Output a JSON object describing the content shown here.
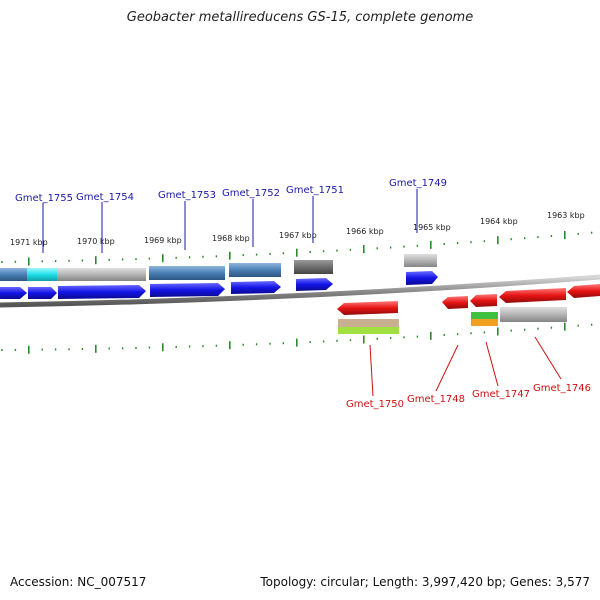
{
  "header": {
    "title": "Geobacter metallireducens GS-15, complete genome"
  },
  "footer": {
    "accession": "Accession: NC_007517",
    "summary": "Topology: circular; Length: 3,997,420 bp; Genes: 3,577"
  },
  "colors": {
    "forward_cds": "#1414e6",
    "reverse_cds": "#e61414",
    "backbone": "#8c8c8c",
    "tick": "#2b8a2b",
    "feature_steelblue": "#4a7fb5",
    "feature_gray": "#b4b4b4",
    "feature_darkgray": "#6e6e6e",
    "feature_cyan": "#20e0e8",
    "feature_green": "#40c040",
    "feature_orange": "#f0a020",
    "feature_lime": "#a0e040",
    "feature_tan": "#c8b090",
    "label_forward": "#1a1aa6",
    "label_reverse": "#cc1111"
  },
  "kbp_ticks": [
    "1971 kbp",
    "1970 kbp",
    "1969 kbp",
    "1968 kbp",
    "1967 kbp",
    "1966 kbp",
    "1965 kbp",
    "1964 kbp",
    "1963 kbp"
  ],
  "genes_forward": [
    "Gmet_1755",
    "Gmet_1754",
    "Gmet_1753",
    "Gmet_1752",
    "Gmet_1751",
    "Gmet_1749"
  ],
  "genes_reverse": [
    "Gmet_1750",
    "Gmet_1748",
    "Gmet_1747",
    "Gmet_1746"
  ]
}
